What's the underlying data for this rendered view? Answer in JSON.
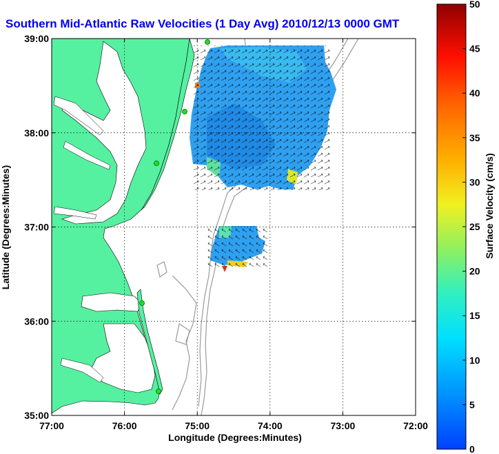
{
  "title": "Southern Mid-Atlantic Raw Velocities (1 Day Avg) 2010/12/13 0000 GMT",
  "xlabel": "Longitude (Degrees:Minutes)",
  "ylabel": "Latitude (Degrees:Minutes)",
  "x_ticks": [
    "77:00",
    "76:00",
    "75:00",
    "74:00",
    "73:00",
    "72:00"
  ],
  "y_ticks": [
    "39:00",
    "38:00",
    "37:00",
    "36:00",
    "35:00"
  ],
  "colorbar": {
    "label": "Surface Velocity (cm/s)",
    "ticks": [
      "0",
      "5",
      "10",
      "15",
      "20",
      "25",
      "30",
      "35",
      "40",
      "45",
      "50"
    ],
    "range": [
      0,
      50
    ],
    "colormap": "jet"
  },
  "map": {
    "lon_range": [
      -77,
      -72
    ],
    "lat_range": [
      35,
      39
    ],
    "grid": "dotted",
    "land_color": "#55f0a0",
    "water_color": "#ffffff",
    "coastline_color": "#000000",
    "bathymetry_color": "#9a9a9a",
    "station_color": "#22dd22",
    "velocity_fields": [
      {
        "region": "north",
        "dominant_speed_cm_s": 6,
        "direction": "mixed"
      },
      {
        "region": "south",
        "dominant_speed_cm_s": 10,
        "direction": "mixed"
      }
    ]
  }
}
